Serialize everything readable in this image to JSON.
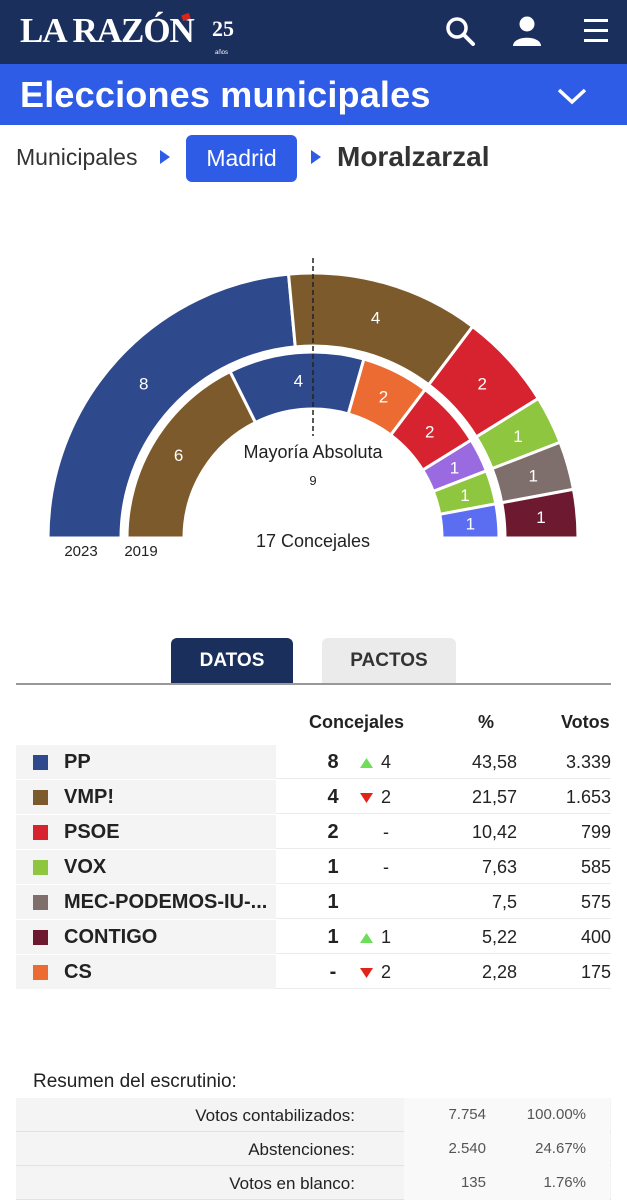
{
  "header": {
    "logo_text": "LA RAZÓN",
    "logo_badge": "25",
    "logo_badge_sub": "años"
  },
  "section": {
    "title": "Elecciones municipales"
  },
  "breadcrumb": {
    "item1": "Municipales",
    "item2": "Madrid",
    "current": "Moralzarzal"
  },
  "colors": {
    "PP": "#2e4a8d",
    "VMP!": "#7d5a2c",
    "PSOE": "#d7232f",
    "VOX": "#8fc63f",
    "MEC-PODEMOS-IU-...": "#7f6f6c",
    "CONTIGO": "#6d1a30",
    "CS": "#ec6b33",
    "OTHER_PURPLE": "#9a6ae0",
    "OTHER_BLUE": "#5b6ef2"
  },
  "chart_data": {
    "type": "hemicycle",
    "total_label": "17 Concejales",
    "majority_label": "Mayoría Absoluta",
    "majority_value": 9,
    "rings": [
      {
        "label": "2023",
        "segments": [
          {
            "party": "PP",
            "seats": 8
          },
          {
            "party": "VMP!",
            "seats": 4
          },
          {
            "party": "PSOE",
            "seats": 2
          },
          {
            "party": "VOX",
            "seats": 1
          },
          {
            "party": "MEC-PODEMOS-IU-...",
            "seats": 1
          },
          {
            "party": "CONTIGO",
            "seats": 1
          }
        ]
      },
      {
        "label": "2019",
        "segments": [
          {
            "party": "VMP!",
            "seats": 6
          },
          {
            "party": "PP",
            "seats": 4
          },
          {
            "party": "CS",
            "seats": 2
          },
          {
            "party": "PSOE",
            "seats": 2
          },
          {
            "party": "OTHER_PURPLE",
            "seats": 1
          },
          {
            "party": "VOX",
            "seats": 1
          },
          {
            "party": "OTHER_BLUE",
            "seats": 1
          }
        ]
      }
    ]
  },
  "tabs": {
    "datos": "DATOS",
    "pactos": "PACTOS"
  },
  "results": {
    "headers": {
      "seats": "Concejales",
      "pct": "%",
      "votes": "Votos"
    },
    "rows": [
      {
        "party": "PP",
        "seats": "8",
        "trend": "up",
        "change": "4",
        "pct": "43,58",
        "votes": "3.339"
      },
      {
        "party": "VMP!",
        "seats": "4",
        "trend": "down",
        "change": "2",
        "pct": "21,57",
        "votes": "1.653"
      },
      {
        "party": "PSOE",
        "seats": "2",
        "trend": "none",
        "change": "-",
        "pct": "10,42",
        "votes": "799"
      },
      {
        "party": "VOX",
        "seats": "1",
        "trend": "none",
        "change": "-",
        "pct": "7,63",
        "votes": "585"
      },
      {
        "party": "MEC-PODEMOS-IU-...",
        "seats": "1",
        "trend": "none",
        "change": "",
        "pct": "7,5",
        "votes": "575"
      },
      {
        "party": "CONTIGO",
        "seats": "1",
        "trend": "up",
        "change": "1",
        "pct": "5,22",
        "votes": "400"
      },
      {
        "party": "CS",
        "seats": "-",
        "trend": "down",
        "change": "2",
        "pct": "2,28",
        "votes": "175"
      }
    ]
  },
  "summary": {
    "title": "Resumen del escrutinio:",
    "rows": [
      {
        "label": "Votos contabilizados:",
        "value": "7.754",
        "pct": "100.00%"
      },
      {
        "label": "Abstenciones:",
        "value": "2.540",
        "pct": "24.67%"
      },
      {
        "label": "Votos en blanco:",
        "value": "135",
        "pct": "1.76%"
      }
    ]
  }
}
